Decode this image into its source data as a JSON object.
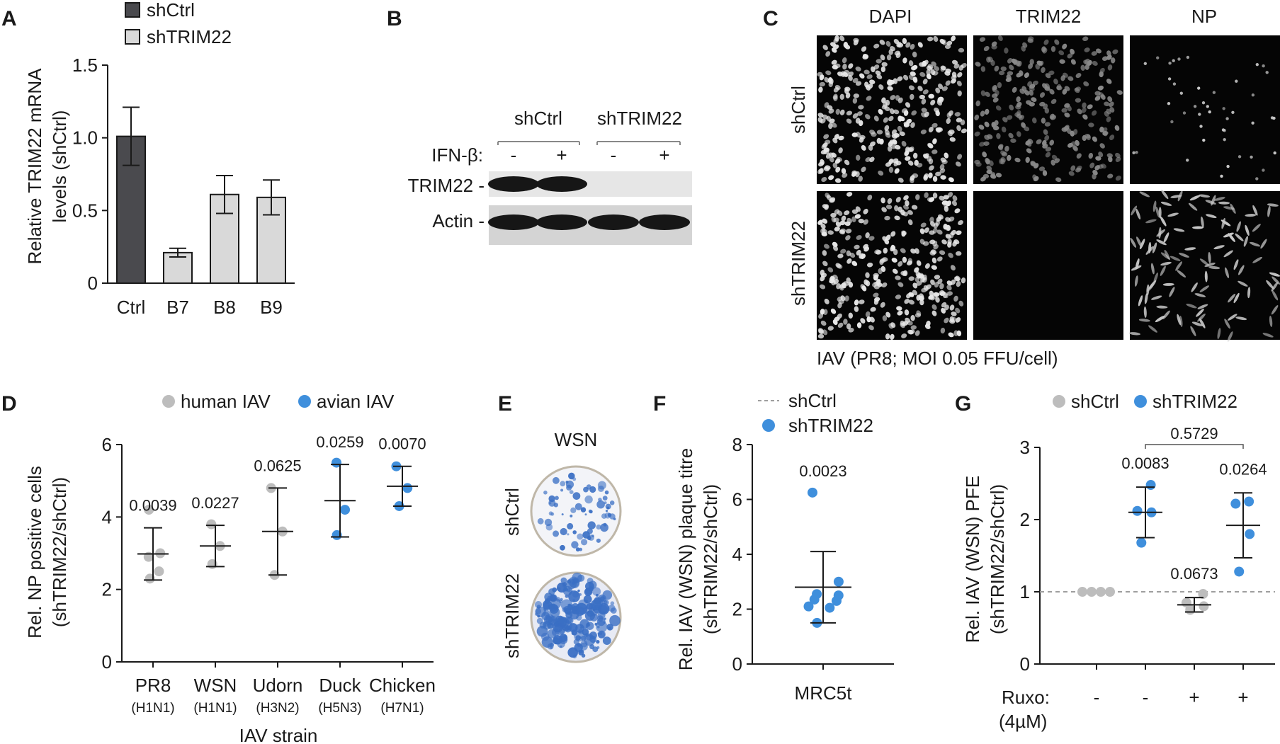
{
  "panel_labels": [
    "A",
    "B",
    "C",
    "D",
    "E",
    "F",
    "G"
  ],
  "chart_data": [
    {
      "panel": "A",
      "type": "bar",
      "ylabel_lines": [
        "Relative TRIM22 mRNA",
        "levels (shCtrl)"
      ],
      "legend": [
        {
          "name": "shCtrl",
          "color": "#4a4a4e"
        },
        {
          "name": "shTRIM22",
          "color": "#d9d9d9"
        }
      ],
      "legend_position": "top",
      "categories": [
        "Ctrl",
        "B7",
        "B8",
        "B9"
      ],
      "values": [
        1.01,
        0.21,
        0.61,
        0.59
      ],
      "errors": [
        0.2,
        0.03,
        0.13,
        0.12
      ],
      "groups": [
        "shCtrl",
        "shTRIM22",
        "shTRIM22",
        "shTRIM22"
      ],
      "ylim": [
        0,
        1.5
      ],
      "yticks": [
        "0",
        "0.5",
        "1.0",
        "1.5"
      ]
    },
    {
      "panel": "D",
      "type": "scatter",
      "ylabel_lines": [
        "Rel. NP positive cells",
        "(shTRIM22/shCtrl)"
      ],
      "xlabel": "IAV strain",
      "legend": [
        {
          "name": "human IAV",
          "color": "#bdbdbd"
        },
        {
          "name": "avian IAV",
          "color": "#3f8fdc"
        }
      ],
      "legend_position": "top",
      "ylim": [
        0,
        6
      ],
      "yticks": [
        "0",
        "2",
        "4",
        "6"
      ],
      "categories": [
        {
          "name": "PR8",
          "sub": "(H1N1)",
          "group": "human",
          "points": [
            2.3,
            2.5,
            2.9,
            3.0,
            4.2
          ],
          "mean": 2.98,
          "sd": 0.72,
          "p": "0.0039"
        },
        {
          "name": "WSN",
          "sub": "(H1N1)",
          "group": "human",
          "points": [
            2.7,
            3.2,
            3.8
          ],
          "mean": 3.2,
          "sd": 0.57,
          "p": "0.0227"
        },
        {
          "name": "Udorn",
          "sub": "(H3N2)",
          "group": "human",
          "points": [
            2.4,
            3.6,
            4.8
          ],
          "mean": 3.6,
          "sd": 1.2,
          "p": "0.0625"
        },
        {
          "name": "Duck",
          "sub": "(H5N3)",
          "group": "avian",
          "points": [
            3.5,
            4.2,
            5.5
          ],
          "mean": 4.45,
          "sd": 1.0,
          "p": "0.0259"
        },
        {
          "name": "Chicken",
          "sub": "(H7N1)",
          "group": "avian",
          "points": [
            4.3,
            4.8,
            5.4
          ],
          "mean": 4.85,
          "sd": 0.55,
          "p": "0.0070"
        }
      ]
    },
    {
      "panel": "F",
      "type": "scatter",
      "ylabel_lines": [
        "Rel. IAV (WSN) plaque titre",
        "(shTRIM22/shCtrl)"
      ],
      "legend": [
        {
          "name": "shCtrl",
          "style": "dashed",
          "color": "#9e9e9e"
        },
        {
          "name": "shTRIM22",
          "color": "#3f8fdc"
        }
      ],
      "legend_position": "top",
      "ylim": [
        0,
        8
      ],
      "yticks": [
        "0",
        "2",
        "4",
        "6",
        "8"
      ],
      "categories": [
        {
          "name": "MRC5t",
          "points": [
            1.5,
            2.05,
            2.1,
            2.3,
            2.35,
            2.5,
            2.55,
            3.0,
            6.25
          ],
          "mean": 2.8,
          "sd": 1.3,
          "p": "0.0023"
        }
      ]
    },
    {
      "panel": "G",
      "type": "scatter",
      "ylabel_lines": [
        "Rel. IAV (WSN) PFE",
        "(shTRIM22/shCtrl)"
      ],
      "legend": [
        {
          "name": "shCtrl",
          "color": "#bdbdbd"
        },
        {
          "name": "shTRIM22",
          "color": "#3f8fdc"
        }
      ],
      "legend_position": "top",
      "ylim": [
        0,
        3
      ],
      "yticks": [
        "0",
        "1",
        "2",
        "3"
      ],
      "reference_line": 1,
      "ruxo_label": "Ruxo:",
      "ruxo_conc": "(4µM)",
      "categories": [
        {
          "ruxo": "-",
          "group": "shCtrl",
          "points": [
            1.0,
            1.0,
            1.0,
            1.0
          ],
          "mean": null,
          "sd": null,
          "p": ""
        },
        {
          "ruxo": "-",
          "group": "shTRIM22",
          "points": [
            1.68,
            2.1,
            2.12,
            2.48
          ],
          "mean": 2.1,
          "sd": 0.35,
          "p": "0.0083"
        },
        {
          "ruxo": "+",
          "group": "shCtrl",
          "points": [
            0.75,
            0.8,
            0.85,
            0.97
          ],
          "mean": 0.82,
          "sd": 0.1,
          "p": "0.0673"
        },
        {
          "ruxo": "+",
          "group": "shTRIM22",
          "points": [
            1.28,
            1.8,
            2.22,
            2.25
          ],
          "mean": 1.92,
          "sd": 0.45,
          "p": "0.0264"
        }
      ],
      "bracket": {
        "from": 1,
        "to": 3,
        "p": "0.5729"
      }
    }
  ],
  "western": {
    "groups": [
      "shCtrl",
      "shTRIM22"
    ],
    "ifn_label": "IFN-β:",
    "lanes": [
      "-",
      "+",
      "-",
      "+"
    ],
    "bands": [
      "TRIM22 -",
      "Actin -"
    ]
  },
  "microscopy": {
    "columns": [
      "DAPI",
      "TRIM22",
      "NP"
    ],
    "rows": [
      "shCtrl",
      "shTRIM22"
    ],
    "caption": "IAV (PR8; MOI 0.05 FFU/cell)"
  },
  "plaque": {
    "title": "WSN",
    "rows": [
      "shCtrl",
      "shTRIM22"
    ]
  },
  "colors": {
    "human": "#bdbdbd",
    "avian": "#3f8fdc",
    "plaque": "#3a6fc4"
  }
}
